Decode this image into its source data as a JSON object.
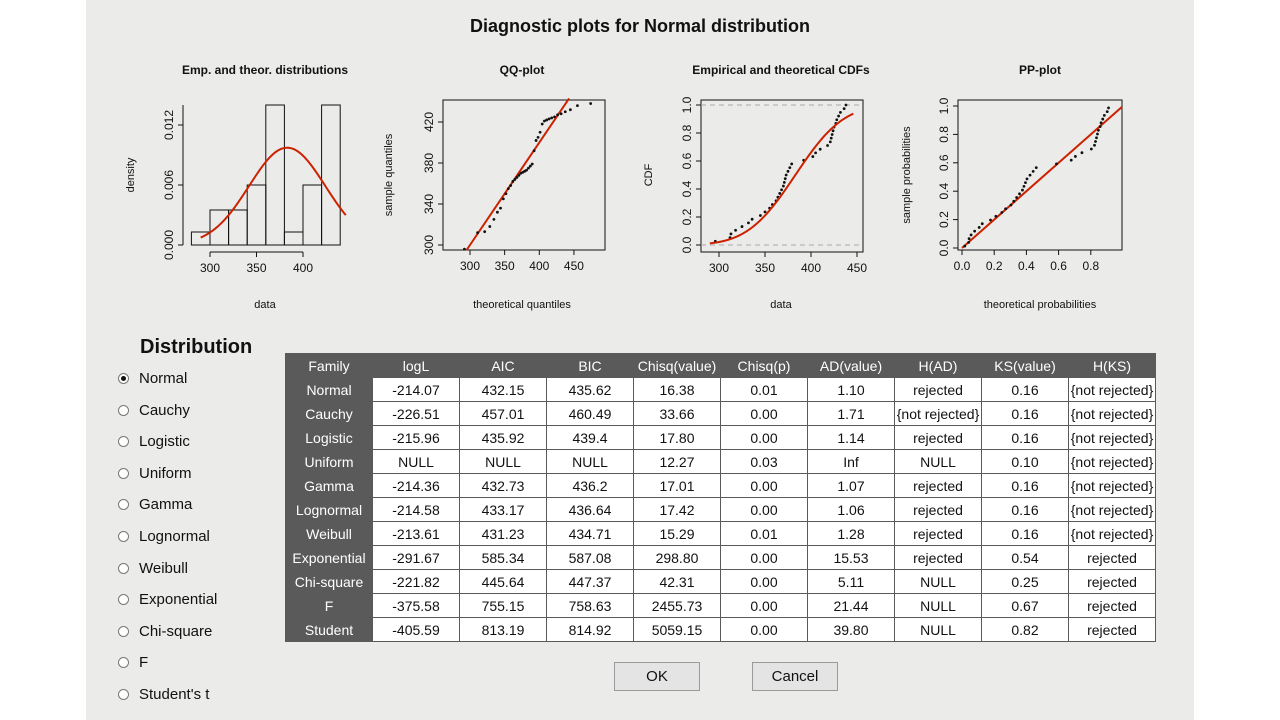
{
  "title": "Diagnostic plots for Normal distribution",
  "colors": {
    "fit_line": "#cc2200",
    "points": "#111111",
    "header_bg": "#5a5a5a",
    "dialog_bg": "#ebebea"
  },
  "chart_data": [
    {
      "type": "bar",
      "title": "Emp. and theor. distributions",
      "xlabel": "data",
      "ylabel": "density",
      "bin_edges": [
        280,
        300,
        320,
        340,
        360,
        380,
        400,
        420,
        440
      ],
      "values": [
        0.0013,
        0.0035,
        0.0035,
        0.006,
        0.014,
        0.0013,
        0.006,
        0.014
      ],
      "xticks": [
        "300",
        "350",
        "400"
      ],
      "yticks": [
        "0.000",
        "0.006",
        "0.012"
      ],
      "fit": {
        "distribution": "normal",
        "mean": 383,
        "sd": 41
      }
    },
    {
      "type": "scatter",
      "title": "QQ-plot",
      "xlabel": "theoretical quantiles",
      "ylabel": "sample quantiles",
      "xticks": [
        "300",
        "350",
        "400",
        "450"
      ],
      "yticks": [
        "300",
        "340",
        "380",
        "420"
      ]
    },
    {
      "type": "line",
      "title": "Empirical and theoretical CDFs",
      "xlabel": "data",
      "ylabel": "CDF",
      "xticks": [
        "300",
        "350",
        "400",
        "450"
      ],
      "yticks": [
        "0.0",
        "0.2",
        "0.4",
        "0.6",
        "0.8",
        "1.0"
      ]
    },
    {
      "type": "scatter",
      "title": "PP-plot",
      "xlabel": "theoretical probabilities",
      "ylabel": "sample probabilities",
      "xticks": [
        "0.0",
        "0.2",
        "0.4",
        "0.6",
        "0.8"
      ],
      "yticks": [
        "0.0",
        "0.2",
        "0.4",
        "0.6",
        "0.8",
        "1.0"
      ]
    }
  ],
  "sample": [
    296,
    312,
    313,
    318,
    325,
    332,
    336,
    345,
    350,
    355,
    358,
    362,
    364,
    366,
    368,
    370,
    371,
    372,
    373,
    375,
    377,
    379,
    392,
    402,
    405,
    410,
    418,
    421,
    422,
    423,
    424,
    425,
    427,
    428,
    430,
    432,
    436,
    438
  ],
  "distribution": {
    "heading": "Distribution",
    "selected": 0,
    "options": [
      "Normal",
      "Cauchy",
      "Logistic",
      "Uniform",
      "Gamma",
      "Lognormal",
      "Weibull",
      "Exponential",
      "Chi-square",
      "F",
      "Student's t"
    ]
  },
  "table": {
    "headers": [
      "Family",
      "logL",
      "AIC",
      "BIC",
      "Chisq(value)",
      "Chisq(p)",
      "AD(value)",
      "H(AD)",
      "KS(value)",
      "H(KS)"
    ],
    "rows": [
      [
        "Normal",
        "-214.07",
        "432.15",
        "435.62",
        "16.38",
        "0.01",
        "1.10",
        "rejected",
        "0.16",
        "{not rejected}"
      ],
      [
        "Cauchy",
        "-226.51",
        "457.01",
        "460.49",
        "33.66",
        "0.00",
        "1.71",
        "{not rejected}",
        "0.16",
        "{not rejected}"
      ],
      [
        "Logistic",
        "-215.96",
        "435.92",
        "439.4",
        "17.80",
        "0.00",
        "1.14",
        "rejected",
        "0.16",
        "{not rejected}"
      ],
      [
        "Uniform",
        "NULL",
        "NULL",
        "NULL",
        "12.27",
        "0.03",
        "Inf",
        "NULL",
        "0.10",
        "{not rejected}"
      ],
      [
        "Gamma",
        "-214.36",
        "432.73",
        "436.2",
        "17.01",
        "0.00",
        "1.07",
        "rejected",
        "0.16",
        "{not rejected}"
      ],
      [
        "Lognormal",
        "-214.58",
        "433.17",
        "436.64",
        "17.42",
        "0.00",
        "1.06",
        "rejected",
        "0.16",
        "{not rejected}"
      ],
      [
        "Weibull",
        "-213.61",
        "431.23",
        "434.71",
        "15.29",
        "0.01",
        "1.28",
        "rejected",
        "0.16",
        "{not rejected}"
      ],
      [
        "Exponential",
        "-291.67",
        "585.34",
        "587.08",
        "298.80",
        "0.00",
        "15.53",
        "rejected",
        "0.54",
        "rejected"
      ],
      [
        "Chi-square",
        "-221.82",
        "445.64",
        "447.37",
        "42.31",
        "0.00",
        "5.11",
        "NULL",
        "0.25",
        "rejected"
      ],
      [
        "F",
        "-375.58",
        "755.15",
        "758.63",
        "2455.73",
        "0.00",
        "21.44",
        "NULL",
        "0.67",
        "rejected"
      ],
      [
        "Student",
        "-405.59",
        "813.19",
        "814.92",
        "5059.15",
        "0.00",
        "39.80",
        "NULL",
        "0.82",
        "rejected"
      ]
    ]
  },
  "buttons": {
    "ok": "OK",
    "cancel": "Cancel"
  }
}
